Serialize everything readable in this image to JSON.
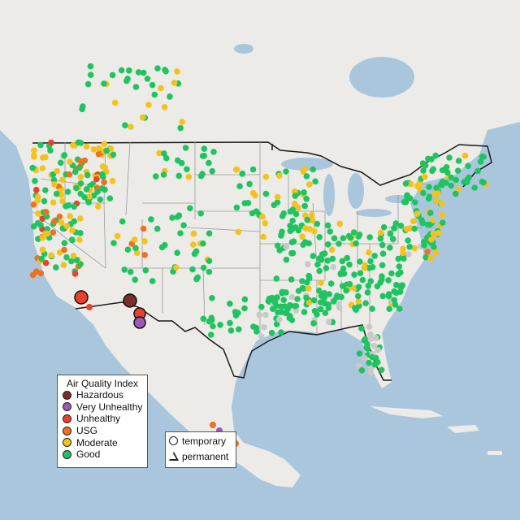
{
  "colors": {
    "ocean": "#a9c6dd",
    "land": "#ecebe7",
    "border": "#1a1a1a",
    "state_line": "#9a9a9a",
    "Good": "#1fc460",
    "Moderate": "#f5c21b",
    "USG": "#f0701e",
    "Unhealthy": "#e8422e",
    "Very Unhealthy": "#9b59b6",
    "Hazardous": "#7b2e26",
    "no_data": "#c9c9c9"
  },
  "legend": {
    "title": "Air Quality Index",
    "items": [
      {
        "label": "Hazardous",
        "color_key": "Hazardous"
      },
      {
        "label": "Very Unhealthy",
        "color_key": "Very Unhealthy"
      },
      {
        "label": "Unhealthy",
        "color_key": "Unhealthy"
      },
      {
        "label": "USG",
        "color_key": "USG"
      },
      {
        "label": "Moderate",
        "color_key": "Moderate"
      },
      {
        "label": "Good",
        "color_key": "Good"
      }
    ]
  },
  "type_legend": {
    "items": [
      {
        "label": "temporary",
        "shape": "circle"
      },
      {
        "label": "permanent",
        "shape": "triangle"
      }
    ]
  }
}
